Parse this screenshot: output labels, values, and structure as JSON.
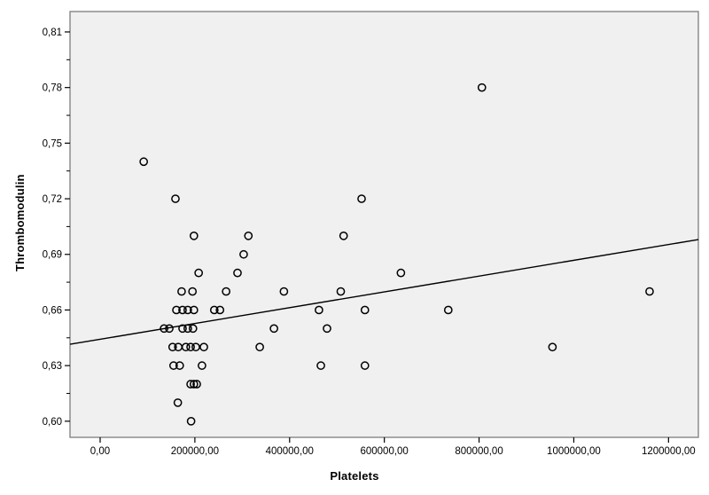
{
  "chart_data": {
    "type": "scatter",
    "title": "",
    "xlabel": "Platelets",
    "ylabel": "Thrombomodulin",
    "legend": false,
    "grid": false,
    "marker": "open-circle",
    "xlim": [
      -63600,
      1263000
    ],
    "ylim": [
      0.5913,
      0.821
    ],
    "x_ticks": [
      0,
      200000,
      400000,
      600000,
      800000,
      1000000,
      1200000
    ],
    "x_tick_labels": [
      "0,00",
      "200000,00",
      "400000,00",
      "600000,00",
      "800000,00",
      "1000000,00",
      "1200000,00"
    ],
    "y_ticks": [
      0.6,
      0.63,
      0.66,
      0.69,
      0.72,
      0.75,
      0.78,
      0.81
    ],
    "y_tick_labels": [
      "0,60",
      "0,63",
      "0,66",
      "0,69",
      "0,72",
      "0,75",
      "0,78",
      "0,81"
    ],
    "y_minor_ticks": [
      0.615,
      0.645,
      0.675,
      0.705,
      0.735,
      0.765,
      0.795
    ],
    "points": [
      [
        806000,
        0.78
      ],
      [
        92000,
        0.74
      ],
      [
        159000,
        0.72
      ],
      [
        552000,
        0.72
      ],
      [
        198000,
        0.7
      ],
      [
        313000,
        0.7
      ],
      [
        514000,
        0.7
      ],
      [
        303000,
        0.69
      ],
      [
        208000,
        0.68
      ],
      [
        290000,
        0.68
      ],
      [
        635000,
        0.68
      ],
      [
        172000,
        0.67
      ],
      [
        195000,
        0.67
      ],
      [
        266000,
        0.67
      ],
      [
        388000,
        0.67
      ],
      [
        508000,
        0.67
      ],
      [
        1160000,
        0.67
      ],
      [
        161000,
        0.66
      ],
      [
        174000,
        0.66
      ],
      [
        185000,
        0.66
      ],
      [
        198000,
        0.66
      ],
      [
        241000,
        0.66
      ],
      [
        253000,
        0.66
      ],
      [
        462000,
        0.66
      ],
      [
        559000,
        0.66
      ],
      [
        735000,
        0.66
      ],
      [
        135000,
        0.65
      ],
      [
        146000,
        0.65
      ],
      [
        174000,
        0.65
      ],
      [
        185000,
        0.65
      ],
      [
        196000,
        0.65
      ],
      [
        367000,
        0.65
      ],
      [
        479000,
        0.65
      ],
      [
        153000,
        0.64
      ],
      [
        165000,
        0.64
      ],
      [
        181000,
        0.64
      ],
      [
        191000,
        0.64
      ],
      [
        202000,
        0.64
      ],
      [
        219000,
        0.64
      ],
      [
        337000,
        0.64
      ],
      [
        955000,
        0.64
      ],
      [
        155000,
        0.63
      ],
      [
        168000,
        0.63
      ],
      [
        215000,
        0.63
      ],
      [
        466000,
        0.63
      ],
      [
        559000,
        0.63
      ],
      [
        191000,
        0.62
      ],
      [
        198000,
        0.62
      ],
      [
        204000,
        0.62
      ],
      [
        164000,
        0.61
      ],
      [
        192000,
        0.6
      ]
    ],
    "fit_line": {
      "x1": -63600,
      "y1": 0.6415,
      "x2": 1263000,
      "y2": 0.698
    }
  },
  "colors": {
    "plot_background": "#f0f0f0",
    "frame": "#7d7d7d",
    "marker": "#000000",
    "fit_line": "#000000",
    "tick": "#000000",
    "text": "#000000",
    "page_background": "#ffffff"
  }
}
